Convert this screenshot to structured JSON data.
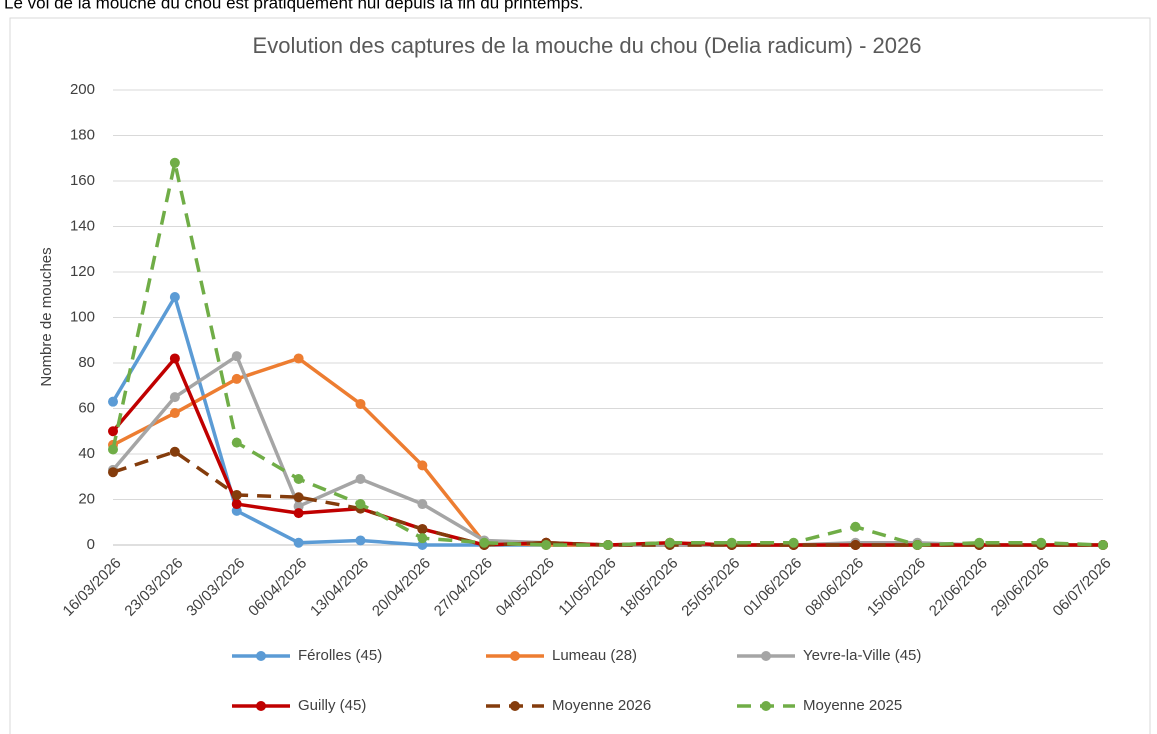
{
  "chart_data": {
    "type": "line",
    "caption": "Le vol de la mouche du chou est pratiquement nul depuis la fin du printemps.",
    "title": "Evolution des captures de la mouche du chou (Delia radicum) - 2026",
    "y_label": "Nombre de mouches",
    "categories": [
      "16/03/2026",
      "23/03/2026",
      "30/03/2026",
      "06/04/2026",
      "13/04/2026",
      "20/04/2026",
      "27/04/2026",
      "04/05/2026",
      "11/05/2026",
      "18/05/2026",
      "25/05/2026",
      "01/06/2026",
      "08/06/2026",
      "15/06/2026",
      "22/06/2026",
      "29/06/2026",
      "06/07/2026"
    ],
    "ylim": [
      0,
      200
    ],
    "yticks": [
      0,
      20,
      40,
      60,
      80,
      100,
      120,
      140,
      160,
      180,
      200
    ],
    "grid": true,
    "legend": "bottom",
    "series": [
      {
        "name": "Férolles (45)",
        "color": "#5b9bd5",
        "dashed": false,
        "values": [
          63,
          109,
          15,
          1,
          2,
          0,
          0,
          0,
          0,
          0,
          0,
          0,
          0,
          0,
          0,
          0,
          0
        ]
      },
      {
        "name": "Lumeau (28)",
        "color": "#ed7d31",
        "dashed": false,
        "values": [
          44,
          58,
          73,
          82,
          62,
          35,
          1,
          0,
          0,
          0,
          0,
          0,
          0,
          0,
          0,
          0,
          0
        ]
      },
      {
        "name": "Yevre-la-Ville (45)",
        "color": "#a5a5a5",
        "dashed": false,
        "values": [
          33,
          65,
          83,
          17,
          29,
          18,
          2,
          1,
          0,
          0,
          0,
          0,
          1,
          1,
          0,
          0,
          0
        ]
      },
      {
        "name": "Guilly (45)",
        "color": "#c00000",
        "dashed": false,
        "values": [
          50,
          82,
          18,
          14,
          16,
          7,
          0,
          1,
          0,
          1,
          0,
          0,
          0,
          0,
          0,
          0,
          0
        ]
      },
      {
        "name": "Moyenne 2026",
        "color": "#843c0c",
        "dashed": true,
        "values": [
          32,
          41,
          22,
          21,
          16,
          7,
          0,
          1,
          0,
          0,
          0,
          0,
          0,
          0,
          0,
          0,
          0
        ]
      },
      {
        "name": "Moyenne 2025",
        "color": "#70ad47",
        "dashed": true,
        "values": [
          42,
          168,
          45,
          29,
          18,
          3,
          1,
          0,
          0,
          1,
          1,
          1,
          8,
          0,
          1,
          1,
          0
        ]
      }
    ]
  }
}
